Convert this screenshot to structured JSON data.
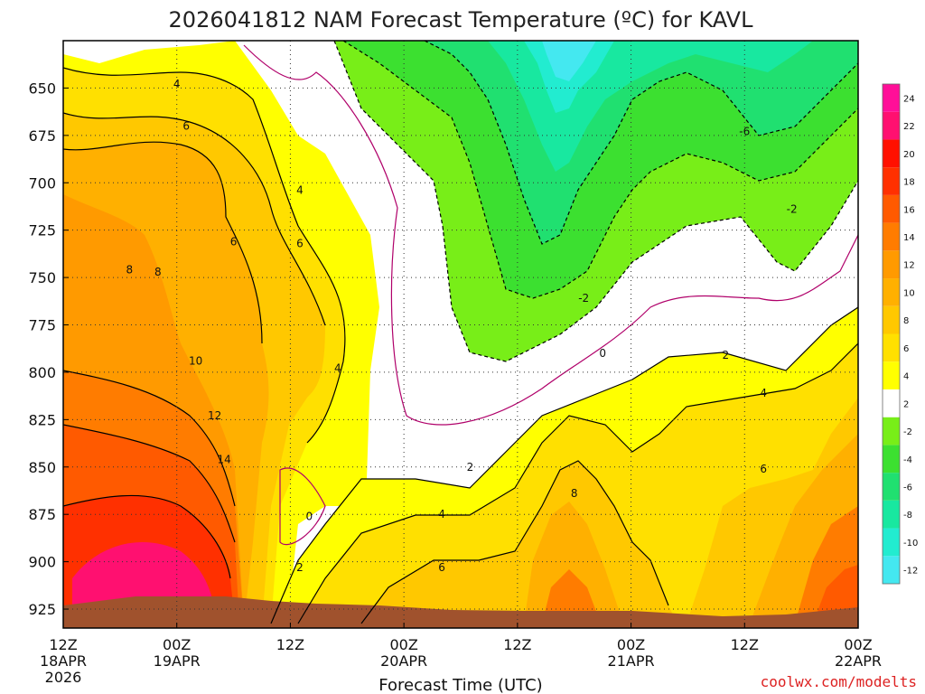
{
  "chart_data": {
    "type": "heatmap",
    "title": "2026041812 NAM Forecast Temperature (ºC) for KAVL",
    "xlabel": "Forecast Time (UTC)",
    "ylabel": "",
    "credit": "coolwx.com/modelts",
    "x_ticks": [
      {
        "hour": 0,
        "line1": "12Z",
        "line2": "18APR",
        "line3": "2026"
      },
      {
        "hour": 12,
        "line1": "00Z",
        "line2": "19APR",
        "line3": ""
      },
      {
        "hour": 24,
        "line1": "12Z",
        "line2": "",
        "line3": ""
      },
      {
        "hour": 36,
        "line1": "00Z",
        "line2": "20APR",
        "line3": ""
      },
      {
        "hour": 48,
        "line1": "12Z",
        "line2": "",
        "line3": ""
      },
      {
        "hour": 60,
        "line1": "00Z",
        "line2": "21APR",
        "line3": ""
      },
      {
        "hour": 72,
        "line1": "12Z",
        "line2": "",
        "line3": ""
      },
      {
        "hour": 84,
        "line1": "00Z",
        "line2": "22APR",
        "line3": ""
      }
    ],
    "x_range_hours": [
      0,
      84
    ],
    "y_ticks": [
      650,
      675,
      700,
      725,
      750,
      775,
      800,
      825,
      850,
      875,
      900,
      925
    ],
    "y_range_hpa": [
      625,
      935
    ],
    "y_inverted": true,
    "grid": "dotted",
    "colorbar": {
      "levels": [
        -12,
        -10,
        -8,
        -6,
        -4,
        -2,
        2,
        4,
        6,
        8,
        10,
        12,
        14,
        16,
        18,
        20,
        22,
        24
      ],
      "colors": [
        "#44e8f0",
        "#22ecd0",
        "#18e8a0",
        "#20e070",
        "#3ce030",
        "#78ee18",
        "#ffffff",
        "#ffff00",
        "#ffe000",
        "#ffc800",
        "#ffb000",
        "#ff9a00",
        "#ff7c00",
        "#ff5a00",
        "#ff3000",
        "#ff1000",
        "#ff1070",
        "#ff0f98"
      ],
      "placement": "right"
    },
    "contour_labels": [
      {
        "text": "4",
        "hour": 12.0,
        "hpa": 648
      },
      {
        "text": "6",
        "hour": 13.0,
        "hpa": 670
      },
      {
        "text": "4",
        "hour": 25.0,
        "hpa": 704
      },
      {
        "text": "6",
        "hour": 18.0,
        "hpa": 731
      },
      {
        "text": "6",
        "hour": 25.0,
        "hpa": 732
      },
      {
        "text": "8",
        "hour": 7.0,
        "hpa": 746
      },
      {
        "text": "8",
        "hour": 10.0,
        "hpa": 747
      },
      {
        "text": "10",
        "hour": 14.0,
        "hpa": 794
      },
      {
        "text": "4",
        "hour": 29.0,
        "hpa": 798
      },
      {
        "text": "12",
        "hour": 16.0,
        "hpa": 823
      },
      {
        "text": "14",
        "hour": 17.0,
        "hpa": 846
      },
      {
        "text": "0",
        "hour": 26.0,
        "hpa": 876
      },
      {
        "text": "2",
        "hour": 25.0,
        "hpa": 903
      },
      {
        "text": "2",
        "hour": 43.0,
        "hpa": 850
      },
      {
        "text": "4",
        "hour": 40.0,
        "hpa": 875
      },
      {
        "text": "6",
        "hour": 40.0,
        "hpa": 903
      },
      {
        "text": "8",
        "hour": 54.0,
        "hpa": 864
      },
      {
        "text": "-6",
        "hour": 72.0,
        "hpa": 673
      },
      {
        "text": "-2",
        "hour": 77.0,
        "hpa": 714
      },
      {
        "text": "-2",
        "hour": 55.0,
        "hpa": 761
      },
      {
        "text": "0",
        "hour": 57.0,
        "hpa": 790
      },
      {
        "text": "2",
        "hour": 70.0,
        "hpa": 791
      },
      {
        "text": "4",
        "hour": 74.0,
        "hpa": 811
      },
      {
        "text": "6",
        "hour": 74.0,
        "hpa": 851
      }
    ]
  }
}
